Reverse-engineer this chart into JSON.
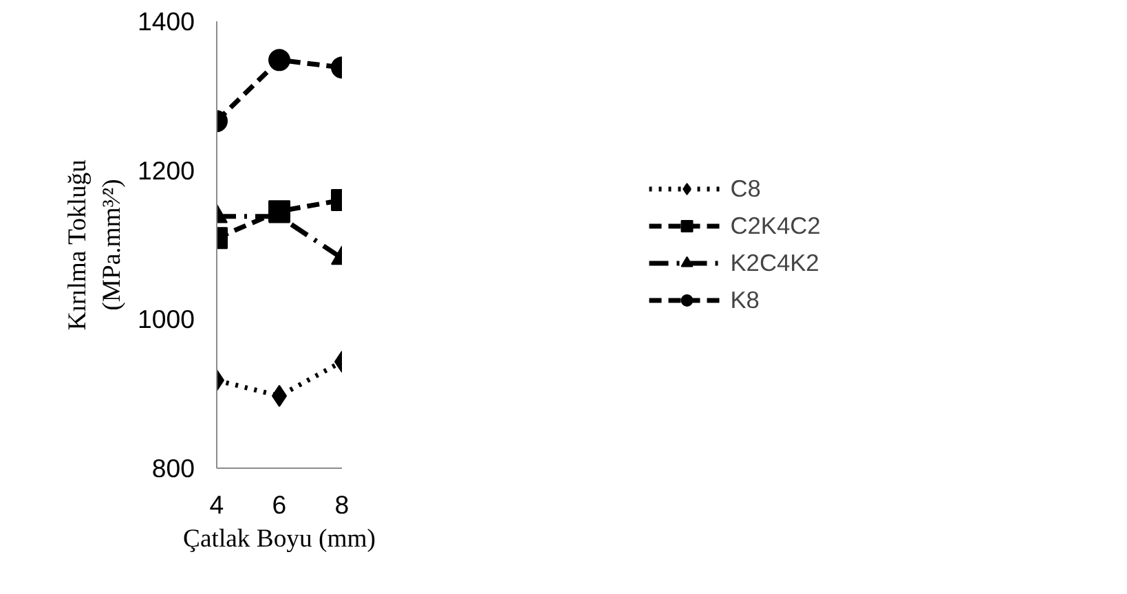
{
  "chart_data": {
    "type": "line",
    "xlabel": "Çatlak Boyu (mm)",
    "ylabel": "Kırılma Tokluğu\n(MPa.mm³⁄²)",
    "x": [
      4,
      6,
      8
    ],
    "xlim": [
      4,
      8
    ],
    "xticks": [
      4,
      6,
      8
    ],
    "ylim": [
      800,
      1400
    ],
    "yticks": [
      800,
      1000,
      1200,
      1400
    ],
    "grid": false,
    "legend": "right",
    "series": [
      {
        "name": "C8",
        "color": "#000000",
        "values": [
          918,
          897,
          943
        ],
        "marker": "diamond",
        "line_style": "dotted"
      },
      {
        "name": "C2K4C2",
        "color": "#000000",
        "values": [
          1109,
          1145,
          1160
        ],
        "marker": "square",
        "line_style": "dashed"
      },
      {
        "name": "K2C4K2",
        "color": "#000000",
        "values": [
          1138,
          1138,
          1082
        ],
        "marker": "triangle",
        "line_style": "dashdot"
      },
      {
        "name": "K8",
        "color": "#000000",
        "values": [
          1266,
          1348,
          1338
        ],
        "marker": "circle",
        "line_style": "dashed"
      }
    ]
  }
}
